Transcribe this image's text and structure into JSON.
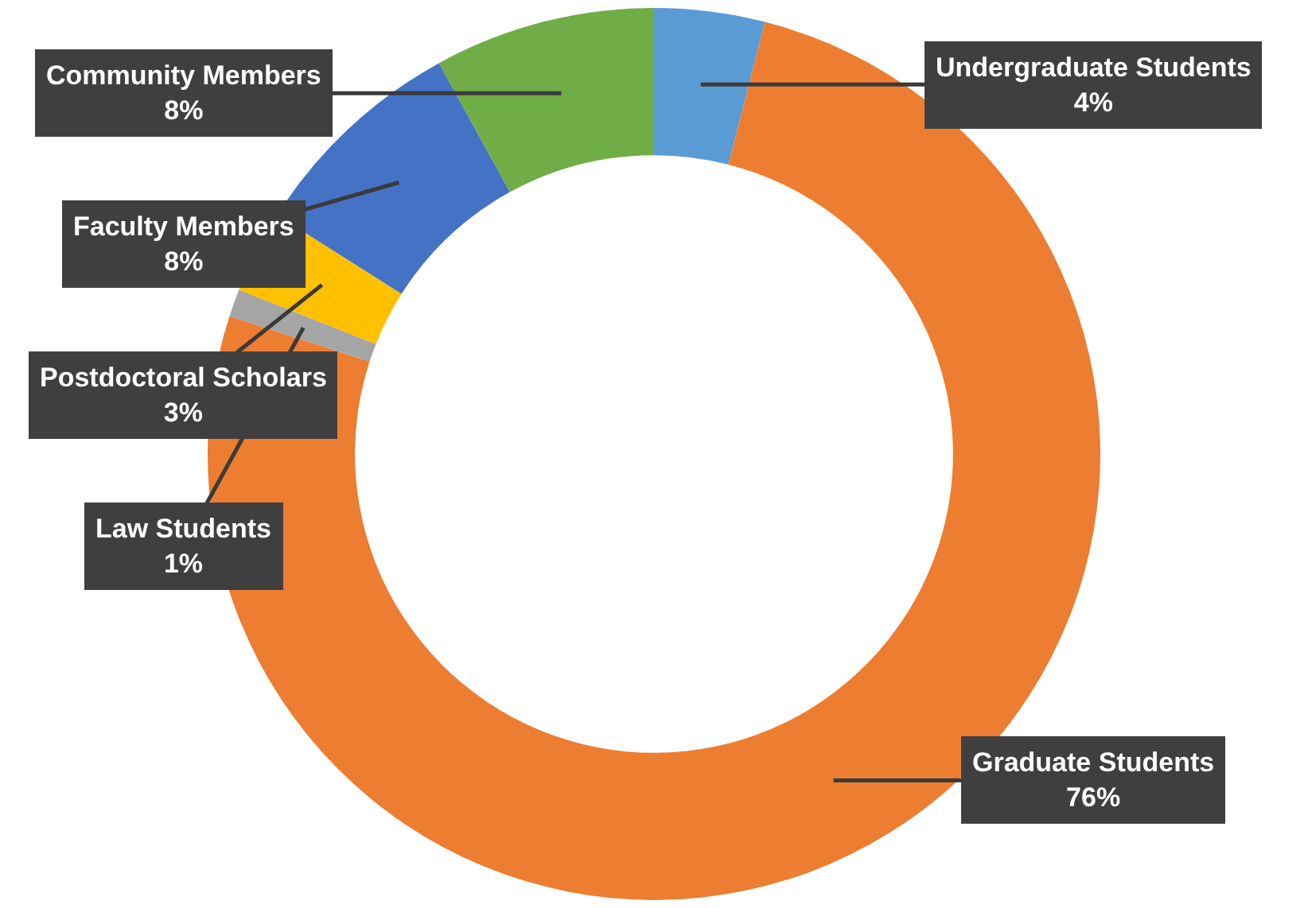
{
  "chart_data": {
    "type": "donut",
    "categories": [
      "Undergraduate Students",
      "Graduate Students",
      "Law Students",
      "Postdoctoral Scholars",
      "Faculty Members",
      "Community Members"
    ],
    "values": [
      4,
      76,
      1,
      3,
      8,
      8
    ],
    "colors": [
      "#5b9bd5",
      "#ed7d31",
      "#a5a5a5",
      "#ffc000",
      "#4472c4",
      "#70ad47"
    ],
    "value_labels": [
      "4%",
      "76%",
      "1%",
      "3%",
      "8%",
      "8%"
    ]
  }
}
